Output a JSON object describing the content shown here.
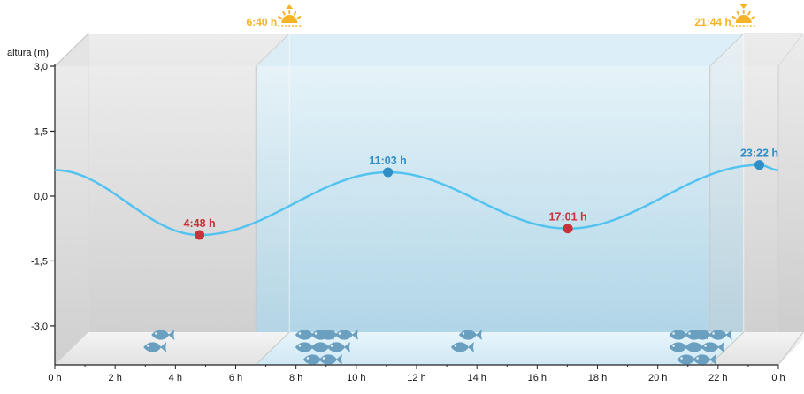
{
  "chart_data": {
    "type": "line",
    "ylabel": "altura (m)",
    "xlim": [
      0,
      24
    ],
    "ylim": [
      -3.9,
      3.0
    ],
    "x_ticks": [
      0,
      2,
      4,
      6,
      8,
      10,
      12,
      14,
      16,
      18,
      20,
      22,
      24
    ],
    "x_tick_labels": [
      "0 h",
      "2 h",
      "4 h",
      "6 h",
      "8 h",
      "10 h",
      "12 h",
      "14 h",
      "16 h",
      "18 h",
      "20 h",
      "22 h",
      "0 h"
    ],
    "y_ticks": [
      3.0,
      1.5,
      0.0,
      -1.5,
      -3.0
    ],
    "y_tick_labels": [
      "3,0",
      "1,5",
      "0,0",
      "-1,5",
      "-3,0"
    ],
    "series": [
      {
        "x": [
          0,
          4.8,
          11.05,
          17.02,
          23.37,
          24
        ],
        "y": [
          0.6,
          -0.9,
          0.55,
          -0.75,
          0.72,
          0.6
        ]
      }
    ],
    "events": [
      {
        "label": "4:48 h",
        "x": 4.8,
        "y": -0.9,
        "type": "low",
        "color": "#c8323a"
      },
      {
        "label": "11:03 h",
        "x": 11.05,
        "y": 0.55,
        "type": "high",
        "color": "#2f8fc6"
      },
      {
        "label": "17:01 h",
        "x": 17.02,
        "y": -0.75,
        "type": "low",
        "color": "#c8323a"
      },
      {
        "label": "23:22 h",
        "x": 23.37,
        "y": 0.72,
        "type": "high",
        "color": "#2f8fc6"
      }
    ],
    "daylight": {
      "sunrise": {
        "label": "6:40 h",
        "x": 6.667
      },
      "sunset": {
        "label": "21:44 h",
        "x": 21.733
      }
    },
    "fish_groups": [
      {
        "x": 3.5,
        "count": 2
      },
      {
        "x": 8.8,
        "count": 9
      },
      {
        "x": 13.7,
        "count": 2
      },
      {
        "x": 21.2,
        "count": 9
      }
    ],
    "colors": {
      "curve": "#55c3f0",
      "night_band": "#d2d2d2",
      "day_band": "#b8dcec",
      "sun": "#f5b428",
      "fish": "#6a9fc0",
      "high_tide": "#2f8fc6",
      "low_tide": "#c8323a"
    }
  }
}
